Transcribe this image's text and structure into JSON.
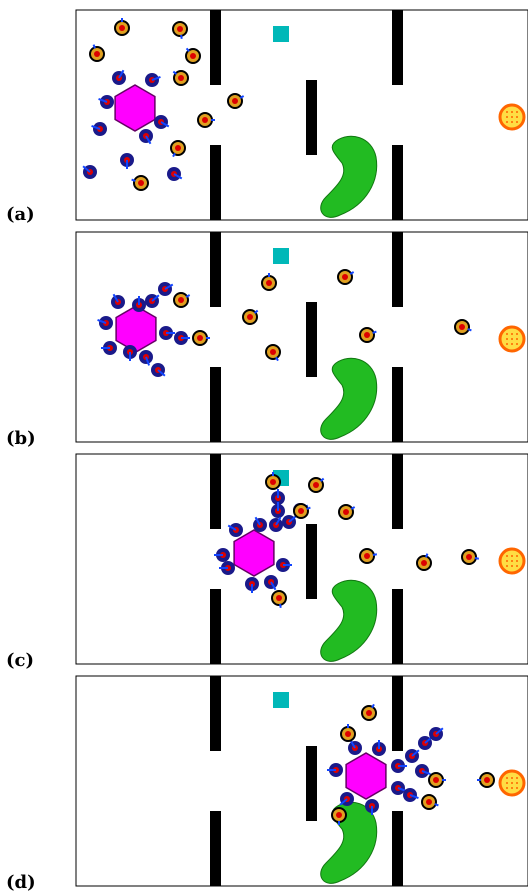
{
  "panels": [
    {
      "id": "a",
      "label": "(a)"
    },
    {
      "id": "b",
      "label": "(b)"
    },
    {
      "id": "c",
      "label": "(c)"
    },
    {
      "id": "d",
      "label": "(d)"
    }
  ],
  "colors": {
    "hexagon": "#ff00ff",
    "wall": "#000000",
    "goal": "#ffdd44",
    "goal_ring": "#ff6600",
    "obstacle": "#22bb22",
    "marker": "#00b8b8",
    "robot_body": "#1a1a8a",
    "robot_core": "#dd0000",
    "robot_heading": "#1144ff",
    "free_robot_ring": "#000000",
    "free_robot_fill": "#e0a020"
  }
}
